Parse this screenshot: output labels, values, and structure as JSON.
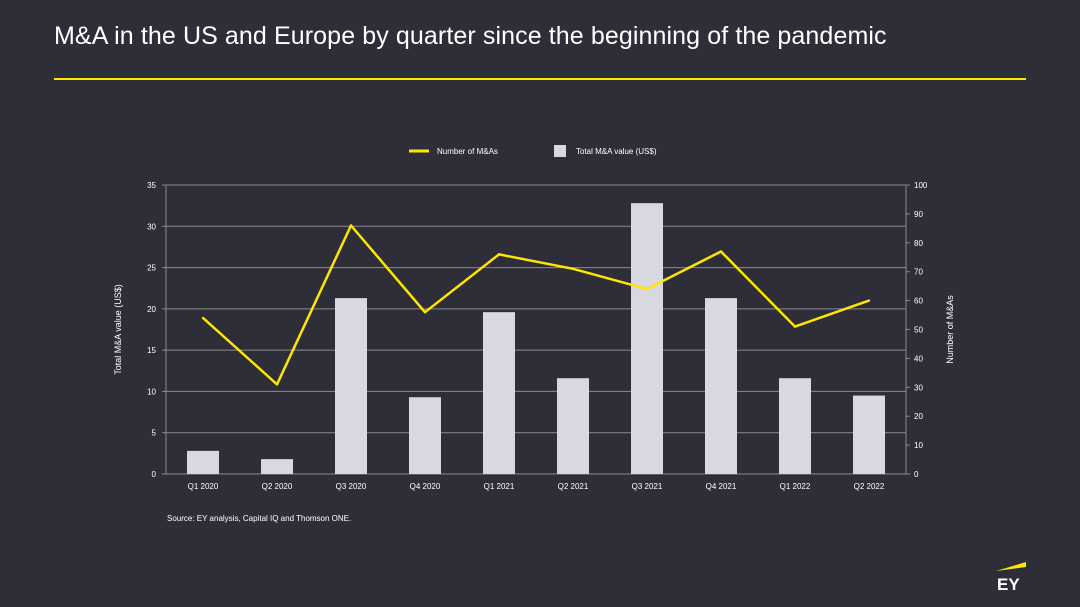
{
  "title": "M&A in the US and Europe by quarter since the beginning of the pandemic",
  "source": "Source: EY analysis, Capital IQ and Thomson ONE.",
  "logo_text": "EY",
  "colors": {
    "background": "#2e2e38",
    "accent": "#ffe600",
    "bar": "#d8d8e0",
    "grid": "#8a8a93",
    "text": "#ffffff"
  },
  "chart_data": {
    "type": "bar-line-combo",
    "categories": [
      "Q1 2020",
      "Q2 2020",
      "Q3 2020",
      "Q4 2020",
      "Q1 2021",
      "Q2 2021",
      "Q3 2021",
      "Q4 2021",
      "Q1 2022",
      "Q2 2022"
    ],
    "series": [
      {
        "name": "Total M&A value (US$)",
        "type": "bar",
        "axis": "left",
        "values": [
          2.8,
          1.8,
          21.3,
          9.3,
          19.6,
          11.6,
          32.8,
          21.3,
          11.6,
          9.5
        ]
      },
      {
        "name": "Number of M&As",
        "type": "line",
        "axis": "right",
        "values": [
          54,
          31,
          86,
          56,
          76,
          71,
          64,
          77,
          51,
          60
        ]
      }
    ],
    "legend": [
      "Number of M&As",
      "Total M&A value (US$)"
    ],
    "legend_position": "top-center",
    "y_left": {
      "label": "Total M&A value (US$)",
      "min": 0,
      "max": 35,
      "ticks": [
        0,
        5,
        10,
        15,
        20,
        25,
        30,
        35
      ]
    },
    "y_right": {
      "label": "Number of M&As",
      "min": 0,
      "max": 100,
      "ticks": [
        0,
        10,
        20,
        30,
        40,
        50,
        60,
        70,
        80,
        90,
        100
      ]
    },
    "grid": true
  }
}
